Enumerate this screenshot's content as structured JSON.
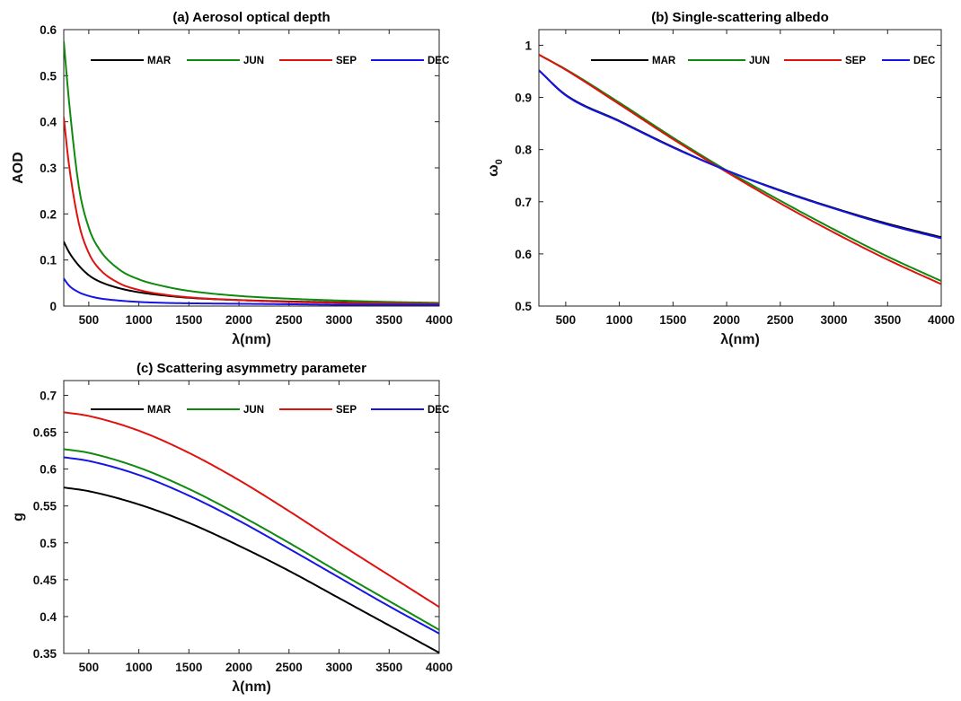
{
  "chart_data": [
    {
      "type": "line",
      "title": "(a) Aerosol optical depth",
      "xlabel": "λ(nm)",
      "ylabel": "AOD",
      "xlim": [
        250,
        4000
      ],
      "ylim": [
        0,
        0.6
      ],
      "xticks": [
        500,
        1000,
        1500,
        2000,
        2500,
        3000,
        3500,
        4000
      ],
      "yticks": [
        0,
        0.1,
        0.2,
        0.3,
        0.4,
        0.5,
        0.6
      ],
      "xtick_labels": [
        "500",
        "1000",
        "1500",
        "2000",
        "2500",
        "3000",
        "3500",
        "4000"
      ],
      "ytick_labels": [
        "0",
        "0.1",
        "0.2",
        "0.3",
        "0.4",
        "0.5",
        "0.6"
      ],
      "legend": "top, single row",
      "grid": false,
      "x": [
        250,
        300,
        400,
        500,
        600,
        800,
        1000,
        1250,
        1500,
        2000,
        2500,
        3000,
        3500,
        4000
      ],
      "series": [
        {
          "name": "MAR",
          "color": "#000000",
          "values": [
            0.14,
            0.118,
            0.088,
            0.067,
            0.054,
            0.039,
            0.03,
            0.023,
            0.018,
            0.013,
            0.01,
            0.008,
            0.006,
            0.005
          ]
        },
        {
          "name": "JUN",
          "color": "#0f8a0f",
          "values": [
            0.575,
            0.45,
            0.26,
            0.17,
            0.125,
            0.08,
            0.058,
            0.043,
            0.033,
            0.022,
            0.016,
            0.012,
            0.009,
            0.007
          ]
        },
        {
          "name": "SEP",
          "color": "#e0120f",
          "values": [
            0.41,
            0.31,
            0.18,
            0.115,
            0.082,
            0.05,
            0.035,
            0.025,
            0.019,
            0.013,
            0.009,
            0.007,
            0.006,
            0.005
          ]
        },
        {
          "name": "DEC",
          "color": "#1515e6",
          "values": [
            0.06,
            0.045,
            0.03,
            0.022,
            0.017,
            0.012,
            0.009,
            0.007,
            0.006,
            0.005,
            0.004,
            0.003,
            0.003,
            0.003
          ]
        }
      ]
    },
    {
      "type": "line",
      "title": "(b) Single-scattering albedo",
      "xlabel": "λ(nm)",
      "ylabel": "ω",
      "ylabel_subscript": "0",
      "xlim": [
        250,
        4000
      ],
      "ylim": [
        0.5,
        1.03
      ],
      "xticks": [
        500,
        1000,
        1500,
        2000,
        2500,
        3000,
        3500,
        4000
      ],
      "yticks": [
        0.5,
        0.6,
        0.7,
        0.8,
        0.9,
        1
      ],
      "xtick_labels": [
        "500",
        "1000",
        "1500",
        "2000",
        "2500",
        "3000",
        "3500",
        "4000"
      ],
      "ytick_labels": [
        "0.5",
        "0.6",
        "0.7",
        "0.8",
        "0.9",
        "1"
      ],
      "legend": "top, single row",
      "grid": false,
      "x": [
        250,
        500,
        1000,
        1500,
        2000,
        2500,
        3000,
        3500,
        4000
      ],
      "series": [
        {
          "name": "MAR",
          "color": "#000000",
          "values": [
            0.952,
            0.905,
            0.855,
            0.805,
            0.76,
            0.722,
            0.688,
            0.658,
            0.632
          ]
        },
        {
          "name": "JUN",
          "color": "#0f8a0f",
          "values": [
            0.982,
            0.954,
            0.89,
            0.823,
            0.76,
            0.702,
            0.647,
            0.595,
            0.548
          ]
        },
        {
          "name": "SEP",
          "color": "#e0120f",
          "values": [
            0.982,
            0.953,
            0.887,
            0.82,
            0.757,
            0.697,
            0.641,
            0.589,
            0.542
          ]
        },
        {
          "name": "DEC",
          "color": "#1515e6",
          "values": [
            0.952,
            0.904,
            0.854,
            0.804,
            0.76,
            0.721,
            0.687,
            0.656,
            0.63
          ]
        }
      ]
    },
    {
      "type": "line",
      "title": "(c) Scattering asymmetry parameter",
      "xlabel": "λ(nm)",
      "ylabel": "g",
      "xlim": [
        250,
        4000
      ],
      "ylim": [
        0.35,
        0.72
      ],
      "xticks": [
        500,
        1000,
        1500,
        2000,
        2500,
        3000,
        3500,
        4000
      ],
      "yticks": [
        0.35,
        0.4,
        0.45,
        0.5,
        0.55,
        0.6,
        0.65,
        0.7
      ],
      "xtick_labels": [
        "500",
        "1000",
        "1500",
        "2000",
        "2500",
        "3000",
        "3500",
        "4000"
      ],
      "ytick_labels": [
        "0.35",
        "0.4",
        "0.45",
        "0.5",
        "0.55",
        "0.6",
        "0.65",
        "0.7"
      ],
      "legend": "top, single row",
      "grid": false,
      "x": [
        250,
        500,
        1000,
        1500,
        2000,
        2500,
        3000,
        3500,
        4000
      ],
      "series": [
        {
          "name": "MAR",
          "color": "#000000",
          "values": [
            0.575,
            0.57,
            0.552,
            0.527,
            0.496,
            0.462,
            0.425,
            0.388,
            0.351
          ]
        },
        {
          "name": "JUN",
          "color": "#0f8a0f",
          "values": [
            0.627,
            0.622,
            0.602,
            0.573,
            0.538,
            0.5,
            0.46,
            0.421,
            0.382
          ]
        },
        {
          "name": "SEP",
          "color": "#e0120f",
          "values": [
            0.677,
            0.672,
            0.652,
            0.622,
            0.585,
            0.543,
            0.499,
            0.456,
            0.413
          ]
        },
        {
          "name": "DEC",
          "color": "#1515e6",
          "values": [
            0.616,
            0.611,
            0.592,
            0.564,
            0.53,
            0.492,
            0.453,
            0.414,
            0.377
          ]
        }
      ]
    }
  ]
}
